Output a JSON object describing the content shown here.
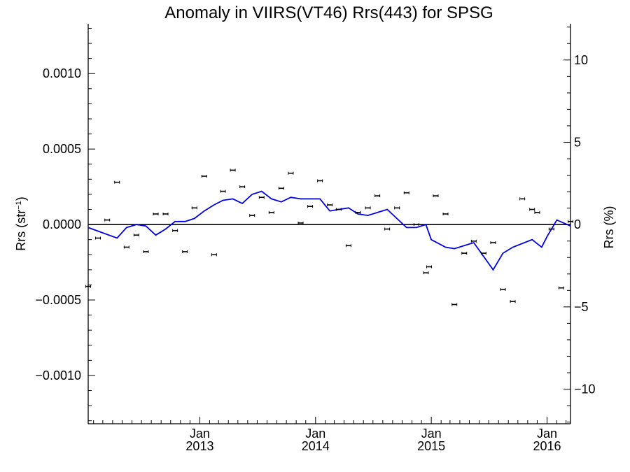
{
  "chart_data": {
    "type": "scatter",
    "title": "Anomaly in VIIRS(VT46) Rrs(443) for SPSG",
    "ylabel": "Rrs (str",
    "ylabel_superscript": "−1",
    "ylabel_close": ")",
    "y2label": "Rrs (%)",
    "ylim": [
      -0.00132,
      0.00133
    ],
    "y2lim": [
      -12.1,
      12.2
    ],
    "x_unit": "month",
    "xlim": [
      "2012-01-15",
      "2016-03-15"
    ],
    "ytick_values": [
      0.001,
      0.0005,
      0.0,
      -0.0005,
      -0.001
    ],
    "ytick_labels": [
      "0.0010",
      "0.0005",
      "0.0000",
      "−0.0005",
      "−0.0010"
    ],
    "y2tick_values": [
      10,
      5,
      0,
      -5,
      -10
    ],
    "y2tick_labels": [
      "10",
      "5",
      "0",
      "−5",
      "−10"
    ],
    "xticks": [
      {
        "x": "2013-01-01",
        "month": "Jan",
        "year": "2013"
      },
      {
        "x": "2014-01-01",
        "month": "Jan",
        "year": "2014"
      },
      {
        "x": "2015-01-01",
        "month": "Jan",
        "year": "2015"
      },
      {
        "x": "2016-01-01",
        "month": "Jan",
        "year": "2016"
      }
    ],
    "zero_line": 0,
    "colors": {
      "points": "#000000",
      "line": "#0000e6",
      "axis": "#000000"
    },
    "series": [
      {
        "marker": "point-with-errorbar",
        "points": [
          [
            "2012-01-15",
            -0.00041
          ],
          [
            "2012-02-15",
            -9e-05
          ],
          [
            "2012-03-15",
            3e-05
          ],
          [
            "2012-04-15",
            0.00028
          ],
          [
            "2012-05-15",
            -0.00015
          ],
          [
            "2012-06-15",
            -7e-05
          ],
          [
            "2012-07-15",
            -0.00018
          ],
          [
            "2012-08-15",
            7e-05
          ],
          [
            "2012-09-15",
            7e-05
          ],
          [
            "2012-10-15",
            -4e-05
          ],
          [
            "2012-11-15",
            -0.00018
          ],
          [
            "2012-12-15",
            0.00011
          ],
          [
            "2013-01-15",
            0.00032
          ],
          [
            "2013-02-15",
            -0.0002
          ],
          [
            "2013-03-15",
            0.00022
          ],
          [
            "2013-04-15",
            0.00036
          ],
          [
            "2013-05-15",
            0.00025
          ],
          [
            "2013-06-15",
            6e-05
          ],
          [
            "2013-07-15",
            0.00018
          ],
          [
            "2013-08-15",
            8e-05
          ],
          [
            "2013-09-15",
            0.00024
          ],
          [
            "2013-10-15",
            0.00034
          ],
          [
            "2013-11-15",
            1e-05
          ],
          [
            "2013-12-15",
            0.00012
          ],
          [
            "2014-01-15",
            0.00029
          ],
          [
            "2014-02-15",
            0.00013
          ],
          [
            "2014-03-15",
            0.0001
          ],
          [
            "2014-04-15",
            -0.00014
          ],
          [
            "2014-05-15",
            8e-05
          ],
          [
            "2014-06-15",
            0.00011
          ],
          [
            "2014-07-15",
            0.00019
          ],
          [
            "2014-08-15",
            -3e-05
          ],
          [
            "2014-09-15",
            0.00011
          ],
          [
            "2014-10-15",
            0.00021
          ],
          [
            "2014-11-15",
            0.0
          ],
          [
            "2014-12-15",
            -0.00032
          ],
          [
            "2014-12-25",
            -0.00028
          ],
          [
            "2015-01-15",
            0.00019
          ],
          [
            "2015-02-15",
            7e-05
          ],
          [
            "2015-03-15",
            -0.00053
          ],
          [
            "2015-04-15",
            -0.00019
          ],
          [
            "2015-05-15",
            -0.00011
          ],
          [
            "2015-06-15",
            -0.00019
          ],
          [
            "2015-07-15",
            -0.00012
          ],
          [
            "2015-08-15",
            -0.00043
          ],
          [
            "2015-09-15",
            -0.00051
          ],
          [
            "2015-10-15",
            0.00017
          ],
          [
            "2015-11-15",
            0.0001
          ],
          [
            "2015-12-01",
            8e-05
          ],
          [
            "2016-01-15",
            -3e-05
          ],
          [
            "2016-02-15",
            -0.00042
          ],
          [
            "2016-03-15",
            2e-05
          ]
        ]
      },
      {
        "marker": "line",
        "points": [
          [
            "2012-01-15",
            -2e-05
          ],
          [
            "2012-04-15",
            -9e-05
          ],
          [
            "2012-05-15",
            -2e-05
          ],
          [
            "2012-06-15",
            0.0
          ],
          [
            "2012-07-15",
            -1e-05
          ],
          [
            "2012-08-15",
            -7e-05
          ],
          [
            "2012-09-15",
            -3e-05
          ],
          [
            "2012-10-15",
            2e-05
          ],
          [
            "2012-11-15",
            2e-05
          ],
          [
            "2012-12-15",
            4e-05
          ],
          [
            "2013-01-15",
            9e-05
          ],
          [
            "2013-02-15",
            0.00013
          ],
          [
            "2013-03-15",
            0.00016
          ],
          [
            "2013-04-15",
            0.00017
          ],
          [
            "2013-05-15",
            0.00014
          ],
          [
            "2013-06-15",
            0.0002
          ],
          [
            "2013-07-15",
            0.00022
          ],
          [
            "2013-08-15",
            0.00017
          ],
          [
            "2013-09-15",
            0.00015
          ],
          [
            "2013-10-15",
            0.00018
          ],
          [
            "2013-11-15",
            0.00017
          ],
          [
            "2013-12-15",
            0.00017
          ],
          [
            "2014-01-15",
            0.00017
          ],
          [
            "2014-02-15",
            9e-05
          ],
          [
            "2014-03-15",
            0.0001
          ],
          [
            "2014-04-15",
            0.00011
          ],
          [
            "2014-05-15",
            7e-05
          ],
          [
            "2014-06-15",
            6e-05
          ],
          [
            "2014-08-15",
            0.0001
          ],
          [
            "2014-10-15",
            -2e-05
          ],
          [
            "2014-11-15",
            -2e-05
          ],
          [
            "2014-12-15",
            0.0
          ],
          [
            "2015-01-01",
            -0.0001
          ],
          [
            "2015-02-15",
            -0.00015
          ],
          [
            "2015-03-15",
            -0.00016
          ],
          [
            "2015-05-15",
            -0.00012
          ],
          [
            "2015-07-15",
            -0.0003
          ],
          [
            "2015-08-15",
            -0.00019
          ],
          [
            "2015-09-15",
            -0.00015
          ],
          [
            "2015-11-15",
            -0.0001
          ],
          [
            "2015-12-15",
            -0.00015
          ],
          [
            "2016-01-01",
            -8e-05
          ],
          [
            "2016-02-01",
            3e-05
          ],
          [
            "2016-03-15",
            -1e-05
          ]
        ]
      }
    ]
  }
}
